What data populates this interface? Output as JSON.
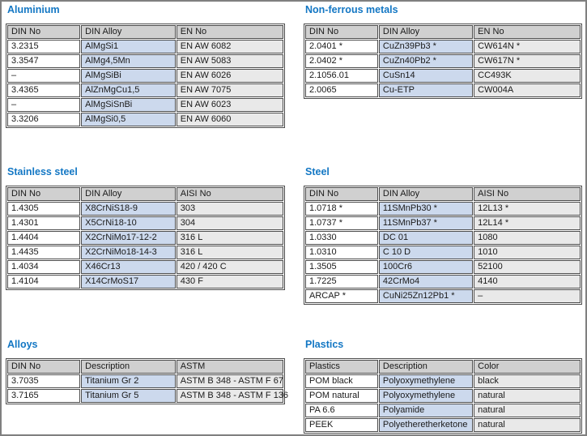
{
  "colors": {
    "title_color": "#1377c4",
    "header_bg": "#d0d0d0",
    "alloy_col_bg": "#ccd9ed",
    "value_col_bg": "#e9e9e9",
    "cell_border": "#4d4d4d",
    "page_border": "#7f7f7f",
    "text": "#1a1a1a"
  },
  "sections": [
    {
      "id": "aluminium",
      "title": "Aluminium",
      "headers": [
        "DIN No",
        "DIN Alloy",
        "EN No"
      ],
      "rows": [
        [
          "3.2315",
          "AlMgSi1",
          "EN AW 6082"
        ],
        [
          "3.3547",
          "AlMg4,5Mn",
          "EN AW 5083"
        ],
        [
          "–",
          "AlMgSiBi",
          "EN AW 6026"
        ],
        [
          "3.4365",
          "AlZnMgCu1,5",
          "EN AW 7075"
        ],
        [
          "–",
          "AlMgSiSnBi",
          "EN AW 6023"
        ],
        [
          "3.3206",
          "AlMgSi0,5",
          "EN AW 6060"
        ]
      ]
    },
    {
      "id": "nonferrous",
      "title": "Non-ferrous metals",
      "headers": [
        "DIN No",
        "DIN Alloy",
        "EN No"
      ],
      "rows": [
        [
          "2.0401 *",
          "CuZn39Pb3 *",
          "CW614N *"
        ],
        [
          "2.0402 *",
          "CuZn40Pb2 *",
          "CW617N *"
        ],
        [
          "2.1056.01",
          "CuSn14",
          "CC493K"
        ],
        [
          "2.0065",
          "Cu-ETP",
          "CW004A"
        ]
      ]
    },
    {
      "id": "stainless",
      "title": "Stainless steel",
      "headers": [
        "DIN No",
        "DIN Alloy",
        "AISI No"
      ],
      "rows": [
        [
          "1.4305",
          "X8CrNiS18-9",
          "303"
        ],
        [
          "1.4301",
          "X5CrNi18-10",
          "304"
        ],
        [
          "1.4404",
          "X2CrNiMo17-12-2",
          "316 L"
        ],
        [
          "1.4435",
          "X2CrNiMo18-14-3",
          "316 L"
        ],
        [
          "1.4034",
          "X46Cr13",
          "420 / 420 C"
        ],
        [
          "1.4104",
          "X14CrMoS17",
          "430 F"
        ]
      ]
    },
    {
      "id": "steel",
      "title": "Steel",
      "headers": [
        "DIN No",
        "DIN Alloy",
        "AISI No"
      ],
      "rows": [
        [
          "1.0718 *",
          "11SMnPb30 *",
          "12L13 *"
        ],
        [
          "1.0737 *",
          "11SMnPb37 *",
          "12L14 *"
        ],
        [
          "1.0330",
          "DC 01",
          "1080"
        ],
        [
          "1.0310",
          "C 10 D",
          "1010"
        ],
        [
          "1.3505",
          "100Cr6",
          "52100"
        ],
        [
          "1.7225",
          "42CrMo4",
          "4140"
        ],
        [
          "ARCAP *",
          "CuNi25Zn12Pb1 *",
          "–"
        ]
      ]
    },
    {
      "id": "alloys",
      "title": "Alloys",
      "headers": [
        "DIN No",
        "Description",
        "ASTM"
      ],
      "rows": [
        [
          "3.7035",
          "Titanium Gr 2",
          "ASTM B 348 - ASTM F 67"
        ],
        [
          "3.7165",
          "Titanium Gr 5",
          "ASTM B 348 - ASTM F 136"
        ]
      ]
    },
    {
      "id": "plastics",
      "title": "Plastics",
      "headers": [
        "Plastics",
        "Description",
        "Color"
      ],
      "rows": [
        [
          "POM black",
          "Polyoxymethylene",
          "black"
        ],
        [
          "POM natural",
          "Polyoxymethylene",
          "natural"
        ],
        [
          "PA 6.6",
          "Polyamide",
          "natural"
        ],
        [
          "PEEK",
          "Polyetheretherketone",
          "natural"
        ]
      ]
    }
  ]
}
